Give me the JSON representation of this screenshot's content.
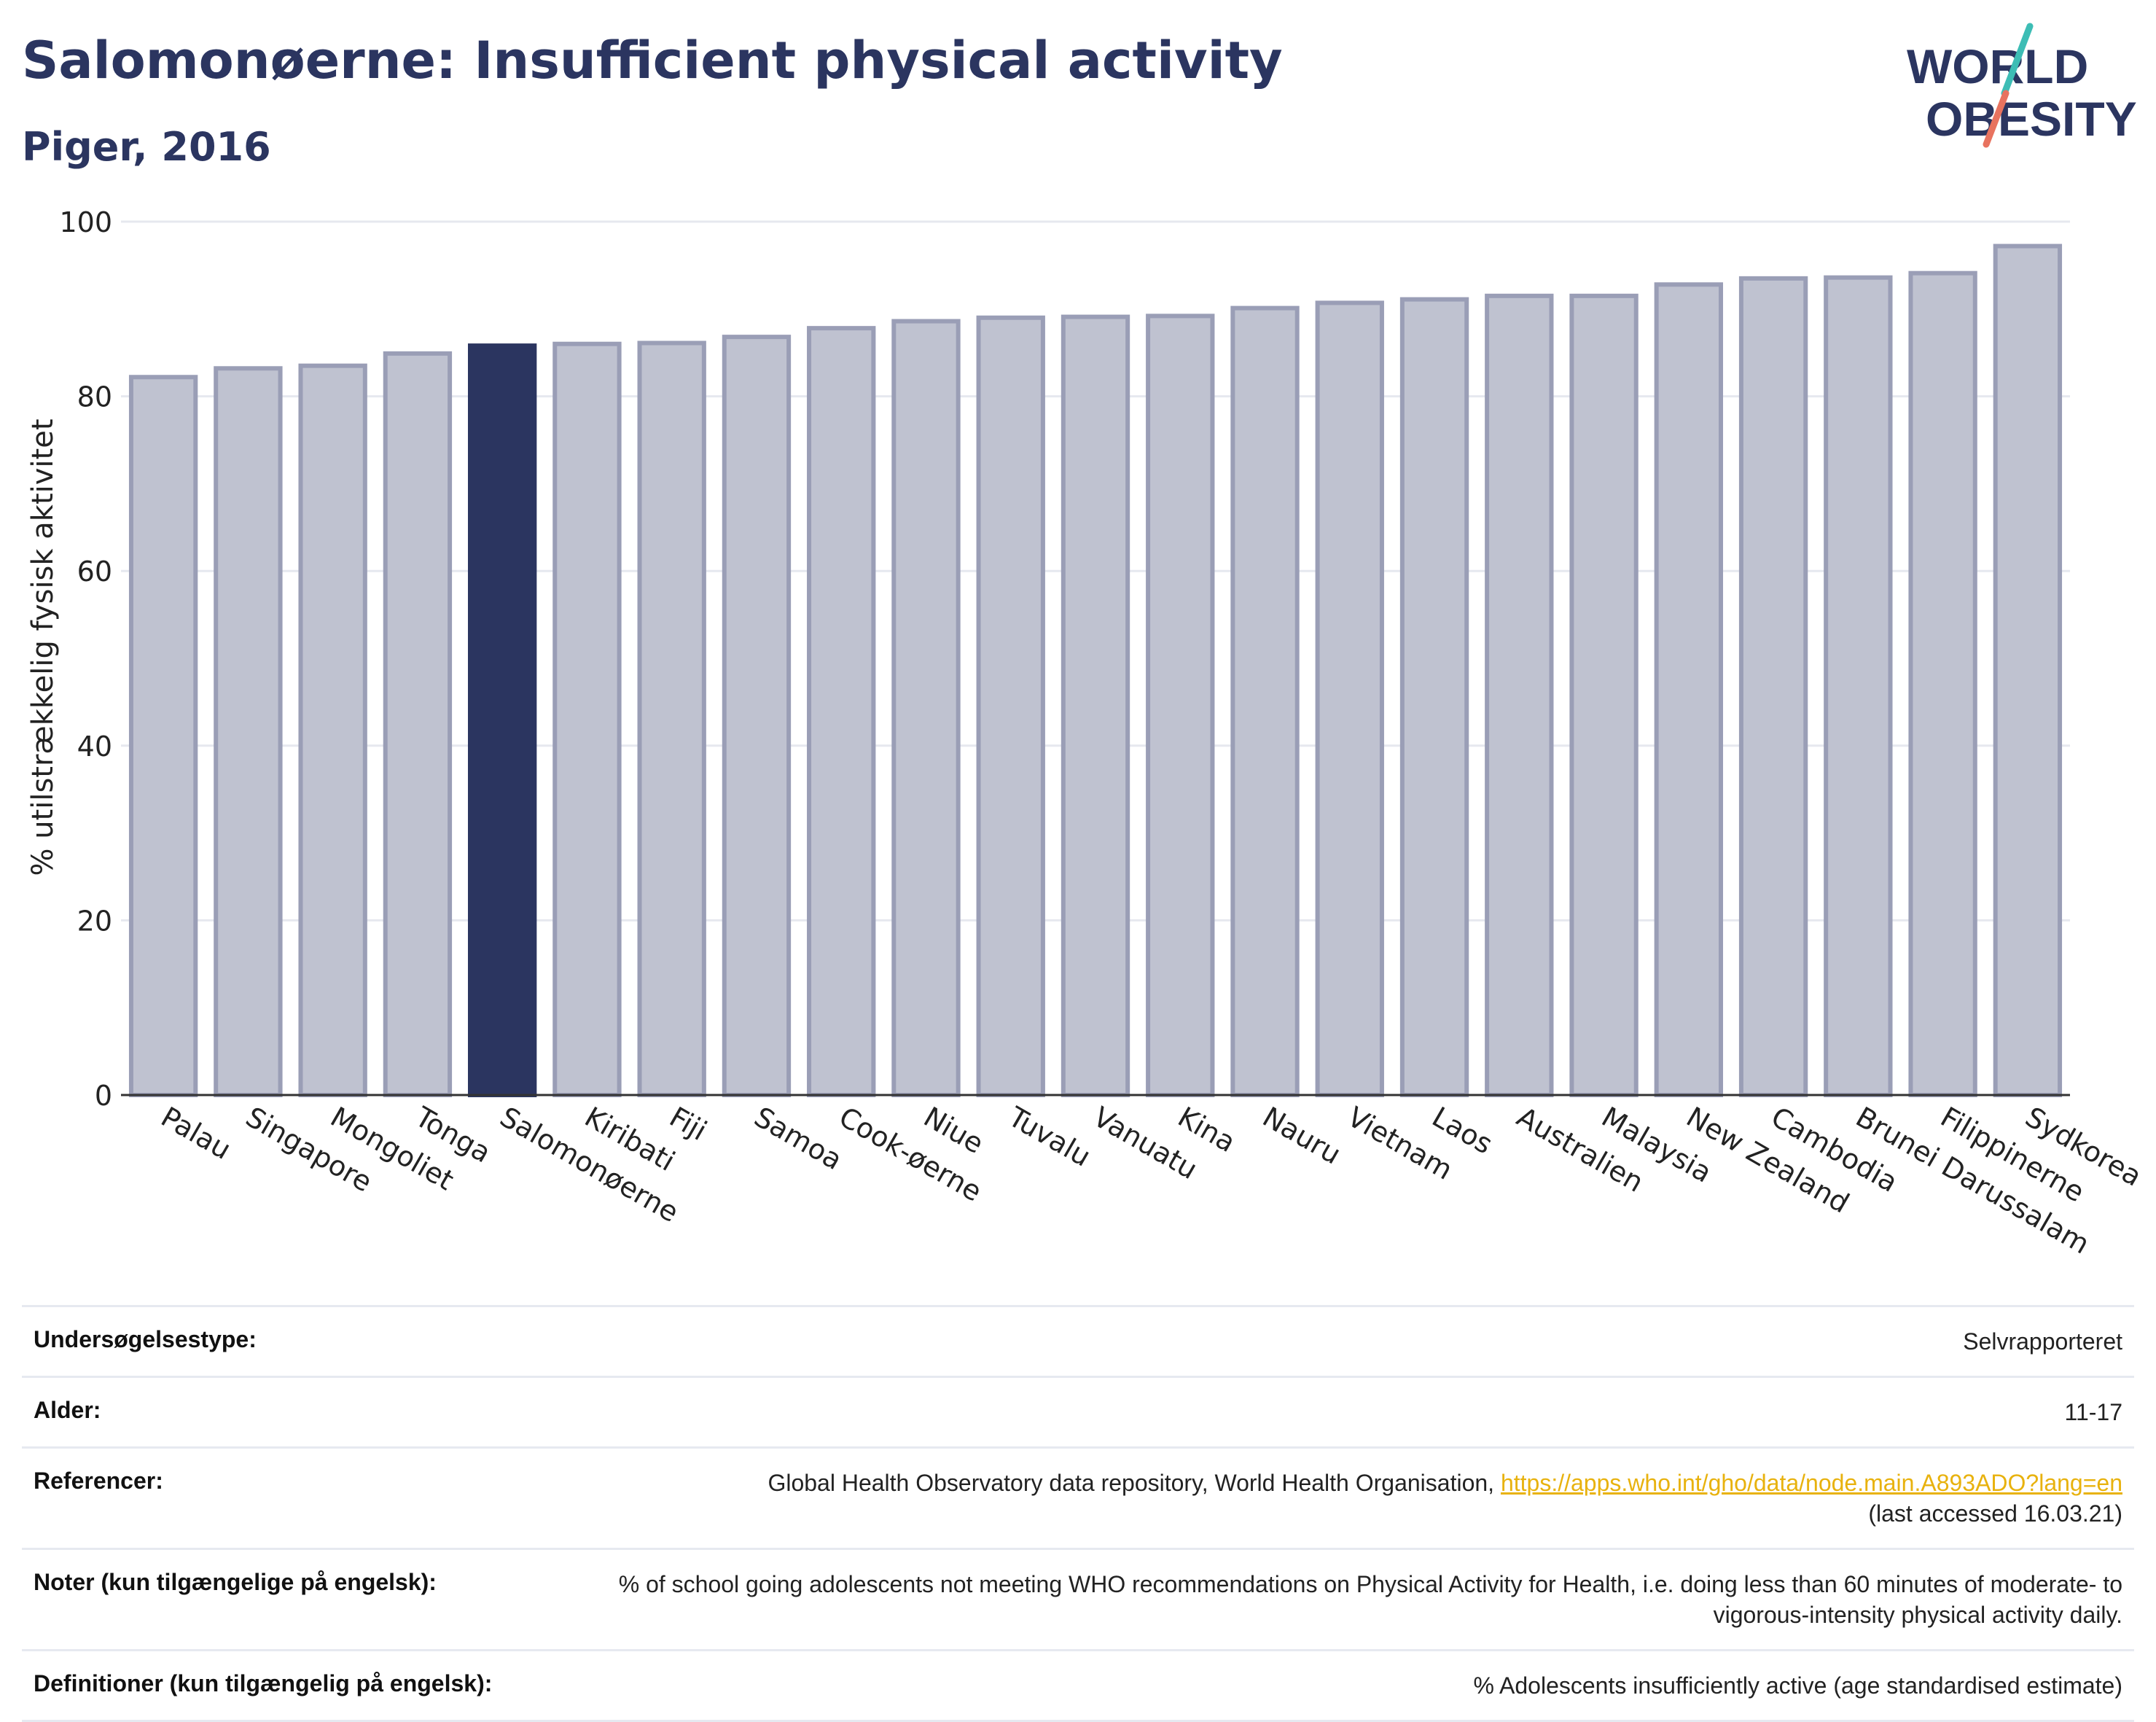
{
  "header": {
    "title": "Salomonøerne: Insufficient physical activity",
    "subtitle": "Piger, 2016"
  },
  "logo": {
    "line1": "WORLD",
    "line2": "OBESITY"
  },
  "colors": {
    "highlight": "#2b3560",
    "bar": "#bfc2d0",
    "bar_edge": "#9a9eb6",
    "grid": "#e6e8ef"
  },
  "chart_data": {
    "type": "bar",
    "title": "Salomonøerne: Insufficient physical activity",
    "subtitle": "Piger, 2016",
    "ylabel": "% utilstrækkelig fysisk aktivitet",
    "xlabel": "",
    "ylim": [
      0,
      100
    ],
    "yticks": [
      0,
      20,
      40,
      60,
      80,
      100
    ],
    "grid": true,
    "highlight": "Salomonøerne",
    "categories": [
      "Palau",
      "Singapore",
      "Mongoliet",
      "Tonga",
      "Salomonøerne",
      "Kiribati",
      "Fiji",
      "Samoa",
      "Cook-øerne",
      "Niue",
      "Tuvalu",
      "Vanuatu",
      "Kina",
      "Nauru",
      "Vietnam",
      "Laos",
      "Australien",
      "Malaysia",
      "New Zealand",
      "Cambodia",
      "Brunei Darussalam",
      "Filippinerne",
      "Sydkorea"
    ],
    "values": [
      82.2,
      83.2,
      83.5,
      84.9,
      85.8,
      86.0,
      86.1,
      86.8,
      87.8,
      88.6,
      89.0,
      89.1,
      89.2,
      90.1,
      90.7,
      91.1,
      91.5,
      91.5,
      92.8,
      93.5,
      93.6,
      94.1,
      97.2
    ]
  },
  "info": {
    "survey_label": "Undersøgelsestype:",
    "survey_value": "Selvrapporteret",
    "age_label": "Alder:",
    "age_value": "11-17",
    "ref_label": "Referencer:",
    "ref_text": "Global Health Observatory data repository, World Health Organisation, ",
    "ref_link": "https://apps.who.int/gho/data/node.main.A893ADO?lang=en",
    "ref_accessed": "(last accessed 16.03.21)",
    "notes_label": "Noter (kun tilgængelige på engelsk):",
    "notes_value": "% of school going adolescents not meeting WHO recommendations on Physical Activity for Health, i.e. doing less than 60 minutes of moderate- to vigorous-intensity physical activity daily.",
    "def_label": "Definitioner (kun tilgængelig på engelsk):",
    "def_value": "% Adolescents insufficiently active (age standardised estimate)"
  }
}
